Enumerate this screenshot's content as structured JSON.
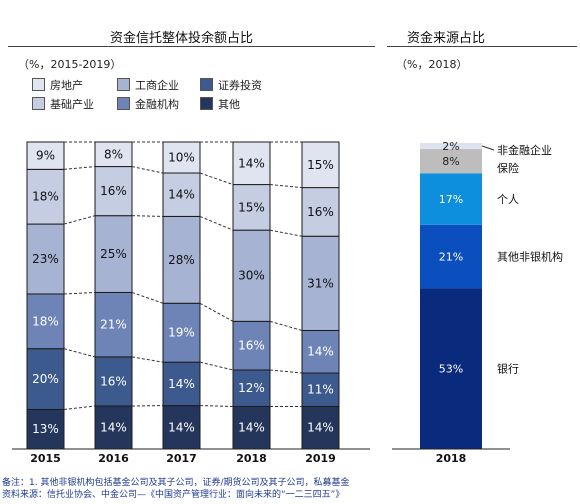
{
  "left_panel": {
    "title": "资金信托整体投余额占比",
    "subtitle": "（%，2015-2019）"
  },
  "right_panel": {
    "title": "资金来源占比",
    "subtitle": "（%，2018）"
  },
  "legend": [
    {
      "label": "房地产",
      "color": "#dfe4f0"
    },
    {
      "label": "工商企业",
      "color": "#a7b3d3"
    },
    {
      "label": "证券投资",
      "color": "#3d5a8e"
    },
    {
      "label": "基础产业",
      "color": "#c5cde3"
    },
    {
      "label": "金融机构",
      "color": "#6e83b6"
    },
    {
      "label": "其他",
      "color": "#25365c"
    }
  ],
  "chart_data": [
    {
      "type": "bar",
      "stacked": true,
      "title": "资金信托整体投余额占比",
      "categories": [
        "2015",
        "2016",
        "2017",
        "2018",
        "2019"
      ],
      "series": [
        {
          "name": "其他",
          "color": "#25365c",
          "values": [
            13,
            14,
            14,
            14,
            14
          ]
        },
        {
          "name": "证券投资",
          "color": "#3d5a8e",
          "values": [
            20,
            16,
            14,
            12,
            11
          ]
        },
        {
          "name": "金融机构",
          "color": "#6e83b6",
          "values": [
            18,
            21,
            19,
            16,
            14
          ]
        },
        {
          "name": "工商企业",
          "color": "#a7b3d3",
          "values": [
            23,
            25,
            28,
            30,
            31
          ]
        },
        {
          "name": "基础产业",
          "color": "#c5cde3",
          "values": [
            18,
            16,
            14,
            15,
            16
          ]
        },
        {
          "name": "房地产",
          "color": "#dfe4f0",
          "values": [
            9,
            8,
            10,
            14,
            15
          ]
        }
      ],
      "value_suffix": "%",
      "ylim": [
        0,
        100
      ]
    },
    {
      "type": "bar",
      "stacked": true,
      "title": "资金来源占比",
      "categories": [
        "2018"
      ],
      "series": [
        {
          "name": "银行",
          "color": "#0a2a7d",
          "values": [
            53
          ]
        },
        {
          "name": "其他非银机构",
          "color": "#0a4fbd",
          "values": [
            21
          ]
        },
        {
          "name": "个人",
          "color": "#0d8fdd",
          "values": [
            17
          ]
        },
        {
          "name": "保险",
          "color": "#bdbdbd",
          "values": [
            8
          ]
        },
        {
          "name": "非金融企业",
          "color": "#dde3ee",
          "values": [
            2
          ]
        }
      ],
      "value_suffix": "%",
      "ylim": [
        0,
        100
      ]
    }
  ],
  "notes": {
    "note": "备注：1. 其他非银机构包括基金公司及其子公司，证券/期货公司及其子公司，私募基金",
    "source": "资料来源：信托业协会、中金公司—《中国资产管理行业：面向未来的“一二三四五”》"
  }
}
